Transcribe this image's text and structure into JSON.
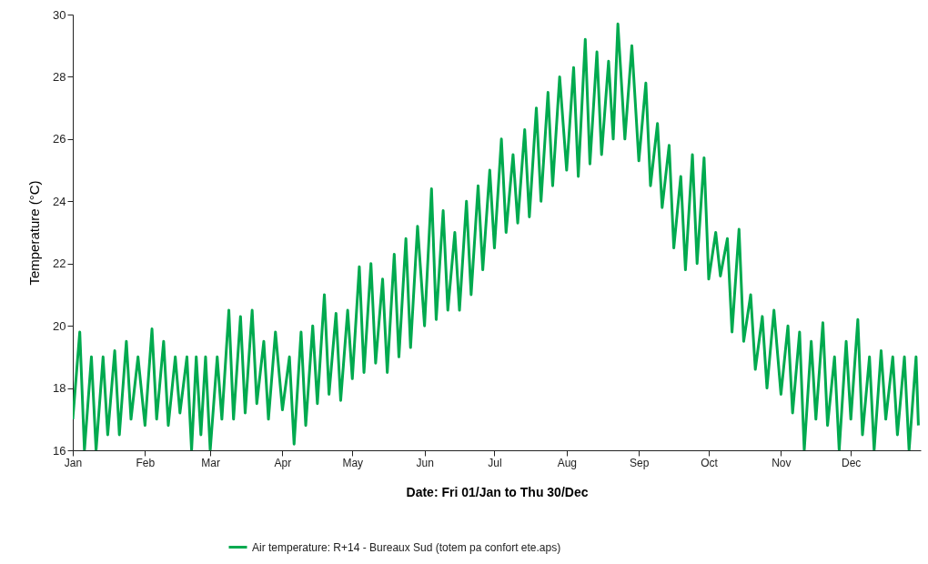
{
  "chart_data": {
    "type": "line",
    "xlabel": "Date: Fri 01/Jan to Thu 30/Dec",
    "ylabel": "Temperature (°C)",
    "x": [
      "--01-01",
      "--01-04",
      "--01-06",
      "--01-09",
      "--01-11",
      "--01-14",
      "--01-16",
      "--01-19",
      "--01-21",
      "--01-24",
      "--01-26",
      "--01-29",
      "--02-01",
      "--02-04",
      "--02-06",
      "--02-09",
      "--02-11",
      "--02-14",
      "--02-16",
      "--02-19",
      "--02-21",
      "--02-23",
      "--02-25",
      "--02-27",
      "--03-01",
      "--03-04",
      "--03-06",
      "--03-09",
      "--03-11",
      "--03-14",
      "--03-16",
      "--03-19",
      "--03-21",
      "--03-24",
      "--03-26",
      "--03-29",
      "--04-01",
      "--04-04",
      "--04-06",
      "--04-09",
      "--04-11",
      "--04-14",
      "--04-16",
      "--04-19",
      "--04-21",
      "--04-24",
      "--04-26",
      "--04-29",
      "--05-01",
      "--05-04",
      "--05-06",
      "--05-09",
      "--05-11",
      "--05-14",
      "--05-16",
      "--05-19",
      "--05-21",
      "--05-24",
      "--05-26",
      "--05-29",
      "--06-01",
      "--06-04",
      "--06-06",
      "--06-09",
      "--06-11",
      "--06-14",
      "--06-16",
      "--06-19",
      "--06-21",
      "--06-24",
      "--06-26",
      "--06-29",
      "--07-01",
      "--07-04",
      "--07-06",
      "--07-09",
      "--07-11",
      "--07-14",
      "--07-16",
      "--07-19",
      "--07-21",
      "--07-24",
      "--07-26",
      "--07-29",
      "--08-01",
      "--08-04",
      "--08-06",
      "--08-09",
      "--08-11",
      "--08-14",
      "--08-16",
      "--08-19",
      "--08-21",
      "--08-23",
      "--08-26",
      "--08-29",
      "--09-01",
      "--09-04",
      "--09-06",
      "--09-09",
      "--09-11",
      "--09-14",
      "--09-16",
      "--09-19",
      "--09-21",
      "--09-24",
      "--09-26",
      "--09-29",
      "--10-01",
      "--10-04",
      "--10-06",
      "--10-09",
      "--10-11",
      "--10-14",
      "--10-16",
      "--10-19",
      "--10-21",
      "--10-24",
      "--10-26",
      "--10-29",
      "--11-01",
      "--11-04",
      "--11-06",
      "--11-09",
      "--11-11",
      "--11-14",
      "--11-16",
      "--11-19",
      "--11-21",
      "--11-24",
      "--11-26",
      "--11-29",
      "--12-01",
      "--12-04",
      "--12-06",
      "--12-09",
      "--12-11",
      "--12-14",
      "--12-16",
      "--12-19",
      "--12-21",
      "--12-24",
      "--12-26",
      "--12-29",
      "--12-30"
    ],
    "series": [
      {
        "name": "Air temperature: R+14 - Bureaux Sud (totem pa confort ete.aps)",
        "color": "#00aa4f",
        "values": [
          17.0,
          19.8,
          16.0,
          19.0,
          16.0,
          19.0,
          16.5,
          19.2,
          16.5,
          19.5,
          17.0,
          19.0,
          16.8,
          19.9,
          17.0,
          19.5,
          16.8,
          19.0,
          17.2,
          19.0,
          16.0,
          19.0,
          16.5,
          19.0,
          16.0,
          19.0,
          17.0,
          20.5,
          17.0,
          20.3,
          17.2,
          20.5,
          17.5,
          19.5,
          17.0,
          19.8,
          17.3,
          19.0,
          16.2,
          19.8,
          16.8,
          20.0,
          17.5,
          21.0,
          17.8,
          20.4,
          17.6,
          20.5,
          18.3,
          21.9,
          18.5,
          22.0,
          18.8,
          21.5,
          18.5,
          22.3,
          19.0,
          22.8,
          19.3,
          23.2,
          20.0,
          24.4,
          20.2,
          23.7,
          20.5,
          23.0,
          20.5,
          24.0,
          21.0,
          24.5,
          21.8,
          25.0,
          22.5,
          26.0,
          23.0,
          25.5,
          23.3,
          26.3,
          23.5,
          27.0,
          24.0,
          27.5,
          24.5,
          28.0,
          25.0,
          28.3,
          24.8,
          29.2,
          25.2,
          28.8,
          25.5,
          28.5,
          26.0,
          29.7,
          26.0,
          29.0,
          25.3,
          27.8,
          24.5,
          26.5,
          23.8,
          25.8,
          22.5,
          24.8,
          21.8,
          25.5,
          22.0,
          25.4,
          21.5,
          23.0,
          21.6,
          22.8,
          19.8,
          23.1,
          19.5,
          21.0,
          18.6,
          20.3,
          18.0,
          20.5,
          17.8,
          20.0,
          17.2,
          19.8,
          16.0,
          19.5,
          17.0,
          20.1,
          16.8,
          19.0,
          16.0,
          19.5,
          17.0,
          20.2,
          16.5,
          19.0,
          16.0,
          19.2,
          17.0,
          19.0,
          16.5,
          19.0,
          16.0,
          19.0,
          16.8
        ]
      }
    ],
    "xlim": [
      "--01-01",
      "--12-31"
    ],
    "xticks": [
      {
        "value": "--01-01",
        "label": "Jan"
      },
      {
        "value": "--02-01",
        "label": "Feb"
      },
      {
        "value": "--03-01",
        "label": "Mar"
      },
      {
        "value": "--04-01",
        "label": "Apr"
      },
      {
        "value": "--05-01",
        "label": "May"
      },
      {
        "value": "--06-01",
        "label": "Jun"
      },
      {
        "value": "--07-01",
        "label": "Jul"
      },
      {
        "value": "--08-01",
        "label": "Aug"
      },
      {
        "value": "--09-01",
        "label": "Sep"
      },
      {
        "value": "--10-01",
        "label": "Oct"
      },
      {
        "value": "--11-01",
        "label": "Nov"
      },
      {
        "value": "--12-01",
        "label": "Dec"
      }
    ],
    "ylim": [
      16,
      30
    ],
    "yticks": [
      16,
      18,
      20,
      22,
      24,
      26,
      28,
      30
    ],
    "legend": "bottom"
  }
}
